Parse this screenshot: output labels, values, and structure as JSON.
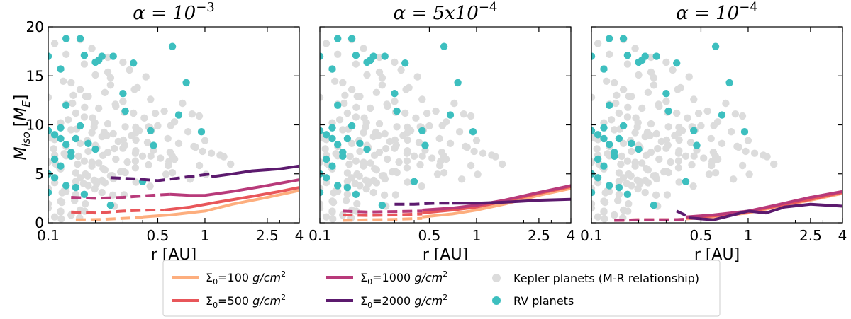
{
  "chart_data": {
    "type": "line+scatter",
    "panels": [
      {
        "title_base": "α = 10",
        "title_exp": "−3",
        "xlabel": "r [AU]",
        "series": [
          {
            "name": "Σ₀=100",
            "dashed_x": [
              0.15,
              0.22,
              0.3,
              0.4
            ],
            "dashed_y": [
              0.3,
              0.35,
              0.45,
              0.55
            ],
            "solid_x": [
              0.4,
              0.6,
              1.0,
              1.5,
              2.5,
              4.0
            ],
            "solid_y": [
              0.6,
              0.8,
              1.2,
              1.9,
              2.6,
              3.3
            ]
          },
          {
            "name": "Σ₀=500",
            "dashed_x": [
              0.14,
              0.2,
              0.3,
              0.45,
              0.55
            ],
            "dashed_y": [
              1.1,
              1.0,
              1.2,
              1.3,
              1.3
            ],
            "solid_x": [
              0.55,
              0.8,
              1.2,
              2.0,
              3.0,
              4.0
            ],
            "solid_y": [
              1.3,
              1.6,
              2.1,
              2.7,
              3.2,
              3.6
            ]
          },
          {
            "name": "Σ₀=1000",
            "dashed_x": [
              0.14,
              0.2,
              0.3,
              0.45,
              0.6
            ],
            "dashed_y": [
              2.6,
              2.5,
              2.6,
              2.8,
              2.9
            ],
            "solid_x": [
              0.6,
              0.8,
              1.0,
              1.5,
              2.5,
              4.0
            ],
            "solid_y": [
              2.9,
              2.8,
              2.8,
              3.2,
              3.8,
              4.4
            ]
          },
          {
            "name": "Σ₀=2000",
            "dashed_x": [
              0.25,
              0.35,
              0.5,
              0.7,
              1.1
            ],
            "dashed_y": [
              4.6,
              4.5,
              4.3,
              4.6,
              5.0
            ],
            "solid_x": [
              1.1,
              1.5,
              2.0,
              3.0,
              4.0
            ],
            "solid_y": [
              4.7,
              5.0,
              5.3,
              5.5,
              5.8
            ]
          }
        ]
      },
      {
        "title_base": "α = 5x10",
        "title_exp": "−4",
        "xlabel": "r [AU]",
        "series": [
          {
            "name": "Σ₀=100",
            "dashed_x": [
              0.14,
              0.2,
              0.3,
              0.45
            ],
            "dashed_y": [
              0.25,
              0.3,
              0.35,
              0.45
            ],
            "solid_x": [
              0.45,
              0.7,
              1.0,
              1.5,
              2.5,
              4.0
            ],
            "solid_y": [
              0.6,
              0.9,
              1.3,
              1.9,
              2.8,
              3.5
            ]
          },
          {
            "name": "Σ₀=500",
            "dashed_x": [
              0.14,
              0.2,
              0.3,
              0.45
            ],
            "dashed_y": [
              0.8,
              0.75,
              0.8,
              0.9
            ],
            "solid_x": [
              0.45,
              0.7,
              1.0,
              1.5,
              2.5,
              4.0
            ],
            "solid_y": [
              1.0,
              1.3,
              1.6,
              2.2,
              3.0,
              3.7
            ]
          },
          {
            "name": "Σ₀=1000",
            "dashed_x": [
              0.14,
              0.2,
              0.3,
              0.45
            ],
            "dashed_y": [
              1.2,
              1.1,
              1.15,
              1.2
            ],
            "solid_x": [
              0.45,
              0.7,
              1.0,
              1.5,
              2.5,
              4.0
            ],
            "solid_y": [
              1.3,
              1.5,
              1.8,
              2.3,
              3.1,
              3.8
            ]
          },
          {
            "name": "Σ₀=2000",
            "dashed_x": [
              0.3,
              0.4,
              0.55,
              0.7
            ],
            "dashed_y": [
              1.9,
              1.9,
              2.0,
              2.0
            ],
            "solid_x": [
              0.7,
              1.0,
              1.5,
              2.5,
              4.0
            ],
            "solid_y": [
              2.0,
              2.0,
              2.1,
              2.3,
              2.4
            ]
          }
        ]
      },
      {
        "title_base": "α = 10",
        "title_exp": "−4",
        "xlabel": "r [AU]",
        "series": [
          {
            "name": "Σ₀=100",
            "dashed_x": [
              0.14,
              0.2,
              0.3,
              0.4
            ],
            "dashed_y": [
              0.25,
              0.3,
              0.3,
              0.35
            ],
            "solid_x": [
              0.4,
              0.6,
              1.0,
              1.5,
              2.5,
              4.0
            ],
            "solid_y": [
              0.4,
              0.6,
              1.0,
              1.6,
              2.3,
              3.0
            ]
          },
          {
            "name": "Σ₀=500",
            "dashed_x": [
              0.14,
              0.2,
              0.3,
              0.4
            ],
            "dashed_y": [
              0.25,
              0.3,
              0.3,
              0.35
            ],
            "solid_x": [
              0.4,
              0.6,
              1.0,
              1.5,
              2.5,
              4.0
            ],
            "solid_y": [
              0.5,
              0.7,
              1.1,
              1.7,
              2.4,
              3.1
            ]
          },
          {
            "name": "Σ₀=1000",
            "dashed_x": [
              0.14,
              0.2,
              0.3,
              0.4
            ],
            "dashed_y": [
              0.25,
              0.3,
              0.3,
              0.35
            ],
            "solid_x": [
              0.4,
              0.6,
              1.0,
              1.5,
              2.5,
              4.0
            ],
            "solid_y": [
              0.6,
              0.8,
              1.2,
              1.8,
              2.6,
              3.2
            ]
          },
          {
            "name": "Σ₀=2000",
            "dashed_x": [
              0.35,
              0.42
            ],
            "dashed_y": [
              1.2,
              0.6
            ],
            "solid_x": [
              0.42,
              0.6,
              0.8,
              1.0,
              1.3,
              1.7,
              2.5,
              4.0
            ],
            "solid_y": [
              0.5,
              0.3,
              0.8,
              1.2,
              1.0,
              1.6,
              1.9,
              1.7
            ]
          }
        ]
      }
    ],
    "ylabel_main": "M",
    "ylabel_sub": "iso",
    "ylabel_unit_main": "M",
    "ylabel_unit_sub": "E",
    "xscale": "log",
    "xlim": [
      0.1,
      4
    ],
    "ylim": [
      0,
      20
    ],
    "xticks": [
      0.1,
      0.5,
      1,
      2.5,
      4
    ],
    "xtick_labels": [
      "0.1",
      "0.5",
      "1",
      "2.5",
      "4"
    ],
    "yticks": [
      0,
      5,
      10,
      15,
      20
    ],
    "ytick_labels": [
      "0",
      "5",
      "10",
      "15",
      "20"
    ],
    "colors": [
      "#fdae7e",
      "#e8565a",
      "#b83a7a",
      "#5c1a6e",
      "#dcdcdc",
      "#3dbfbf"
    ],
    "kepler_points": [
      [
        0.1,
        3.5
      ],
      [
        0.1,
        6.2
      ],
      [
        0.11,
        8.5
      ],
      [
        0.11,
        4.1
      ],
      [
        0.12,
        10.2
      ],
      [
        0.12,
        5.5
      ],
      [
        0.12,
        2.2
      ],
      [
        0.13,
        7.8
      ],
      [
        0.13,
        12.1
      ],
      [
        0.13,
        3.2
      ],
      [
        0.14,
        9.5
      ],
      [
        0.14,
        6.8
      ],
      [
        0.14,
        14.3
      ],
      [
        0.15,
        5.1
      ],
      [
        0.15,
        11.2
      ],
      [
        0.15,
        2.9
      ],
      [
        0.16,
        8.1
      ],
      [
        0.16,
        13.6
      ],
      [
        0.16,
        4.6
      ],
      [
        0.17,
        6.3
      ],
      [
        0.17,
        10.8
      ],
      [
        0.17,
        16.2
      ],
      [
        0.18,
        7.3
      ],
      [
        0.18,
        3.8
      ],
      [
        0.18,
        12.9
      ],
      [
        0.19,
        5.8
      ],
      [
        0.19,
        9.2
      ],
      [
        0.2,
        15.1
      ],
      [
        0.2,
        4.3
      ],
      [
        0.2,
        7.9
      ],
      [
        0.21,
        11.7
      ],
      [
        0.21,
        6.1
      ],
      [
        0.22,
        8.8
      ],
      [
        0.22,
        3.1
      ],
      [
        0.23,
        13.3
      ],
      [
        0.23,
        5.4
      ],
      [
        0.24,
        10.1
      ],
      [
        0.24,
        7.2
      ],
      [
        0.25,
        4.8
      ],
      [
        0.25,
        14.8
      ],
      [
        0.26,
        9.1
      ],
      [
        0.27,
        6.5
      ],
      [
        0.27,
        11.9
      ],
      [
        0.28,
        8.3
      ],
      [
        0.29,
        5.2
      ],
      [
        0.3,
        12.4
      ],
      [
        0.3,
        7.6
      ],
      [
        0.31,
        9.8
      ],
      [
        0.32,
        6.2
      ],
      [
        0.33,
        15.6
      ],
      [
        0.34,
        8.9
      ],
      [
        0.35,
        11.2
      ],
      [
        0.36,
        7.1
      ],
      [
        0.37,
        13.8
      ],
      [
        0.38,
        9.4
      ],
      [
        0.4,
        6.8
      ],
      [
        0.41,
        10.7
      ],
      [
        0.43,
        8.2
      ],
      [
        0.45,
        12.6
      ],
      [
        0.47,
        7.4
      ],
      [
        0.5,
        9.9
      ],
      [
        0.52,
        6.6
      ],
      [
        0.55,
        11.4
      ],
      [
        0.58,
        8.6
      ],
      [
        0.6,
        7.2
      ],
      [
        0.64,
        10.3
      ],
      [
        0.68,
        8.1
      ],
      [
        0.72,
        12.2
      ],
      [
        0.78,
        9.3
      ],
      [
        0.85,
        7.8
      ],
      [
        0.92,
        10.9
      ],
      [
        1.0,
        8.4
      ],
      [
        1.1,
        7.1
      ],
      [
        1.25,
        6.9
      ],
      [
        0.11,
        18.3
      ],
      [
        0.13,
        17.2
      ],
      [
        0.16,
        18.7
      ],
      [
        0.19,
        17.8
      ],
      [
        0.24,
        16.9
      ],
      [
        0.3,
        16.4
      ],
      [
        0.42,
        14.9
      ],
      [
        0.12,
        15.7
      ],
      [
        0.1,
        12.8
      ],
      [
        0.1,
        9.1
      ],
      [
        0.11,
        6.9
      ],
      [
        0.1,
        1.5
      ],
      [
        0.12,
        1.1
      ],
      [
        0.14,
        0.8
      ],
      [
        0.11,
        0.6
      ],
      [
        0.16,
        1.3
      ]
    ],
    "rv_points": [
      [
        0.1,
        17.0
      ],
      [
        0.12,
        15.7
      ],
      [
        0.13,
        18.8
      ],
      [
        0.16,
        18.8
      ],
      [
        0.17,
        17.1
      ],
      [
        0.2,
        16.4
      ],
      [
        0.21,
        16.6
      ],
      [
        0.22,
        17.0
      ],
      [
        0.26,
        17.0
      ],
      [
        0.35,
        16.3
      ],
      [
        0.13,
        12.0
      ],
      [
        0.1,
        9.4
      ],
      [
        0.11,
        9.0
      ],
      [
        0.12,
        9.7
      ],
      [
        0.12,
        8.6
      ],
      [
        0.13,
        8.0
      ],
      [
        0.14,
        7.2
      ],
      [
        0.15,
        8.6
      ],
      [
        0.16,
        9.9
      ],
      [
        0.18,
        8.1
      ],
      [
        0.2,
        7.5
      ],
      [
        0.11,
        6.5
      ],
      [
        0.12,
        5.8
      ],
      [
        0.14,
        6.8
      ],
      [
        0.1,
        5.0
      ],
      [
        0.11,
        4.6
      ],
      [
        0.13,
        3.8
      ],
      [
        0.15,
        3.6
      ],
      [
        0.17,
        2.9
      ],
      [
        0.1,
        3.1
      ],
      [
        0.3,
        13.2
      ],
      [
        0.31,
        11.4
      ],
      [
        0.45,
        9.4
      ],
      [
        0.47,
        7.9
      ],
      [
        0.68,
        11.0
      ],
      [
        0.76,
        14.3
      ],
      [
        0.95,
        9.3
      ],
      [
        0.62,
        18.0
      ],
      [
        0.25,
        1.8
      ],
      [
        0.4,
        4.2
      ]
    ],
    "legend": [
      {
        "label_prefix": "Σ",
        "label_sub": "0",
        "label_mid": "=100 ",
        "label_unit_base": "g/cm",
        "label_unit_sup": "2"
      },
      {
        "label_prefix": "Σ",
        "label_sub": "0",
        "label_mid": "=500 ",
        "label_unit_base": "g/cm",
        "label_unit_sup": "2"
      },
      {
        "label_prefix": "Σ",
        "label_sub": "0",
        "label_mid": "=1000 ",
        "label_unit_base": "g/cm",
        "label_unit_sup": "2"
      },
      {
        "label_prefix": "Σ",
        "label_sub": "0",
        "label_mid": "=2000 ",
        "label_unit_base": "g/cm",
        "label_unit_sup": "2"
      },
      {
        "label": "Kepler planets (M-R relationship)"
      },
      {
        "label": "RV planets"
      }
    ]
  }
}
